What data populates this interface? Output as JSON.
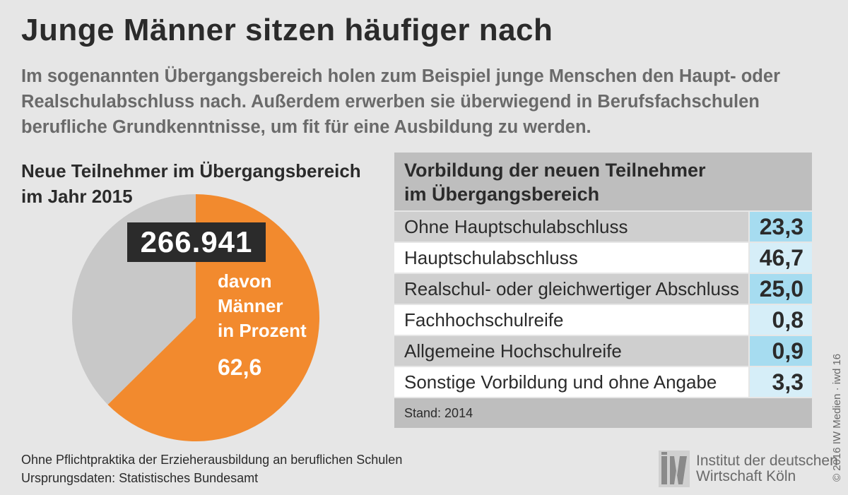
{
  "title": "Junge Männer sitzen häufiger nach",
  "subtitle": "Im sogenannten Übergangsbereich holen zum Beispiel junge Menschen den Haupt- oder Realschulabschluss nach. Außerdem erwerben sie überwiegend in Berufsfachschulen berufliche Grundkenntnisse, um fit für eine Ausbildung zu werden.",
  "chart_data": [
    {
      "type": "pie",
      "title_lines": [
        "Neue Teilnehmer im Übergangsbereich",
        "im Jahr 2015"
      ],
      "total": "266.941",
      "slices": [
        {
          "name": "Männer",
          "value": 62.6,
          "color": "#f28a2e"
        },
        {
          "name": "",
          "value": 37.4,
          "color": "#c8c8c8"
        }
      ],
      "label_lines": [
        "davon",
        "Männer",
        "in Prozent"
      ],
      "value_label": "62,6"
    },
    {
      "type": "table",
      "title_lines": [
        "Vorbildung der neuen Teilnehmer",
        "im Übergangsbereich"
      ],
      "rows": [
        {
          "label": "Ohne Hauptschulabschluss",
          "value": "23,3"
        },
        {
          "label": "Hauptschulabschluss",
          "value": "46,7"
        },
        {
          "label": "Realschul- oder gleichwertiger Abschluss",
          "value": "25,0"
        },
        {
          "label": "Fachhochschulreife",
          "value": "0,8"
        },
        {
          "label": "Allgemeine Hochschulreife",
          "value": "0,9"
        },
        {
          "label": "Sonstige Vorbildung und ohne Angabe",
          "value": "3,3"
        }
      ],
      "footer": "Stand: 2014"
    }
  ],
  "footnote_lines": [
    "Ohne Pflichtpraktika der Erzieherausbildung an beruflichen Schulen",
    "Ursprungsdaten: Statistisches Bundesamt"
  ],
  "logo": {
    "mark": "iw",
    "lines": [
      "Institut der deutschen",
      "Wirtschaft Köln"
    ]
  },
  "copyright": "© 2016 IW Medien · iwd 16",
  "colors": {
    "accent": "#f28a2e",
    "gray_slice": "#c8c8c8",
    "highlight": "#a6dcf0",
    "highlight_light": "#d6eef8"
  }
}
